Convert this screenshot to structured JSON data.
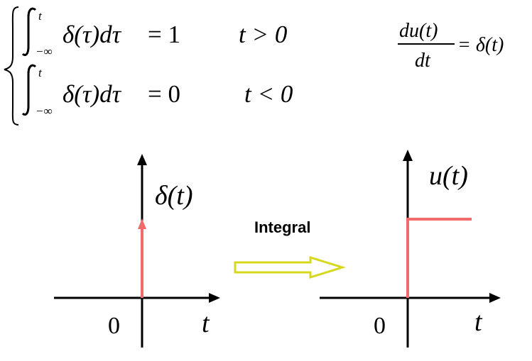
{
  "formulas": {
    "line1": {
      "integral_upper": "t",
      "integral_lower": "−∞",
      "integrand": "δ(τ)dτ",
      "equals_value": "= 1",
      "condition": "t > 0"
    },
    "line2": {
      "integral_upper": "t",
      "integral_lower": "−∞",
      "integrand": "δ(τ)dτ",
      "equals_value": "= 0",
      "condition": "t < 0"
    },
    "derivative": {
      "numerator": "du(t)",
      "denominator": "dt",
      "rhs": "= δ(t)"
    }
  },
  "left_plot": {
    "function_label": "δ(t)",
    "origin_label": "0",
    "axis_label": "t"
  },
  "middle": {
    "arrow_label": "Integral"
  },
  "right_plot": {
    "function_label": "u(t)",
    "origin_label": "0",
    "axis_label": "t"
  },
  "colors": {
    "signal": "#f26b6b",
    "arrow_outline": "#d6d81c",
    "axis": "#000000"
  }
}
